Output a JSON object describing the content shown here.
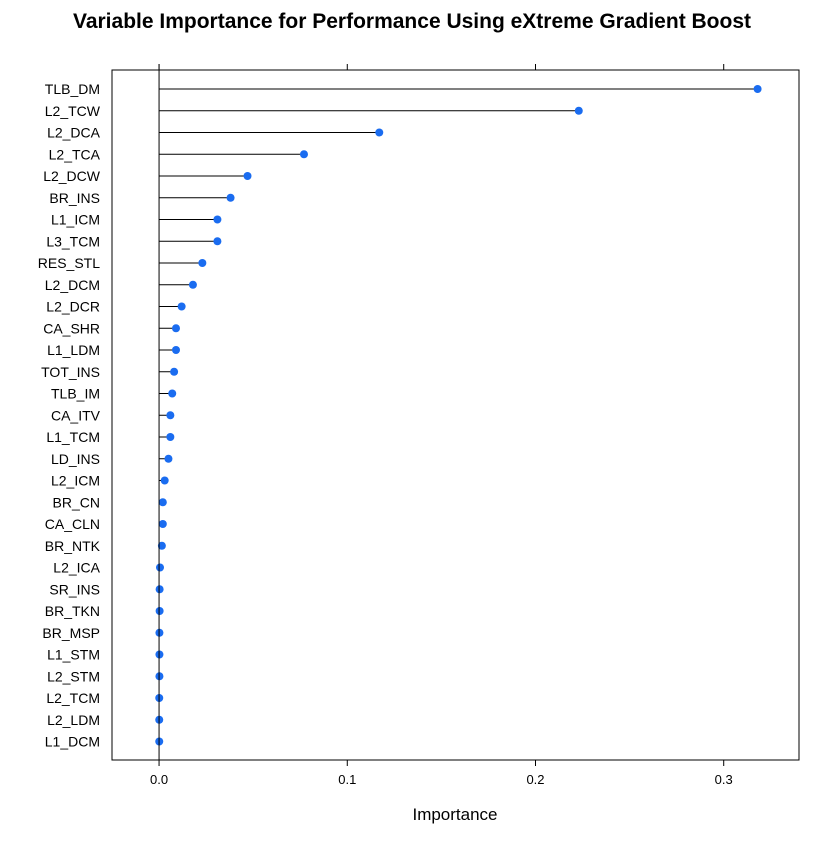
{
  "chart_data": {
    "type": "dot",
    "title": "Variable Importance for Performance Using eXtreme Gradient Boost",
    "xlabel": "Importance",
    "ylabel": "",
    "xlim": [
      -0.025,
      0.34
    ],
    "xticks": [
      0.0,
      0.1,
      0.2,
      0.3
    ],
    "xtick_labels": [
      "0.0",
      "0.1",
      "0.2",
      "0.3"
    ],
    "grid": false,
    "legend": "none",
    "point_color": "#1a6cf0",
    "categories": [
      "TLB_DM",
      "L2_TCW",
      "L2_DCA",
      "L2_TCA",
      "L2_DCW",
      "BR_INS",
      "L1_ICM",
      "L3_TCM",
      "RES_STL",
      "L2_DCM",
      "L2_DCR",
      "CA_SHR",
      "L1_LDM",
      "TOT_INS",
      "TLB_IM",
      "CA_ITV",
      "L1_TCM",
      "LD_INS",
      "L2_ICM",
      "BR_CN",
      "CA_CLN",
      "BR_NTK",
      "L2_ICA",
      "SR_INS",
      "BR_TKN",
      "BR_MSP",
      "L1_STM",
      "L2_STM",
      "L2_TCM",
      "L2_LDM",
      "L1_DCM"
    ],
    "values": [
      0.318,
      0.223,
      0.117,
      0.077,
      0.047,
      0.038,
      0.031,
      0.031,
      0.023,
      0.018,
      0.012,
      0.009,
      0.009,
      0.008,
      0.007,
      0.006,
      0.006,
      0.005,
      0.003,
      0.002,
      0.002,
      0.0015,
      0.0005,
      0.0003,
      0.0003,
      0.0002,
      0.0002,
      0.0002,
      0.0001,
      0.0001,
      0.0001
    ]
  }
}
